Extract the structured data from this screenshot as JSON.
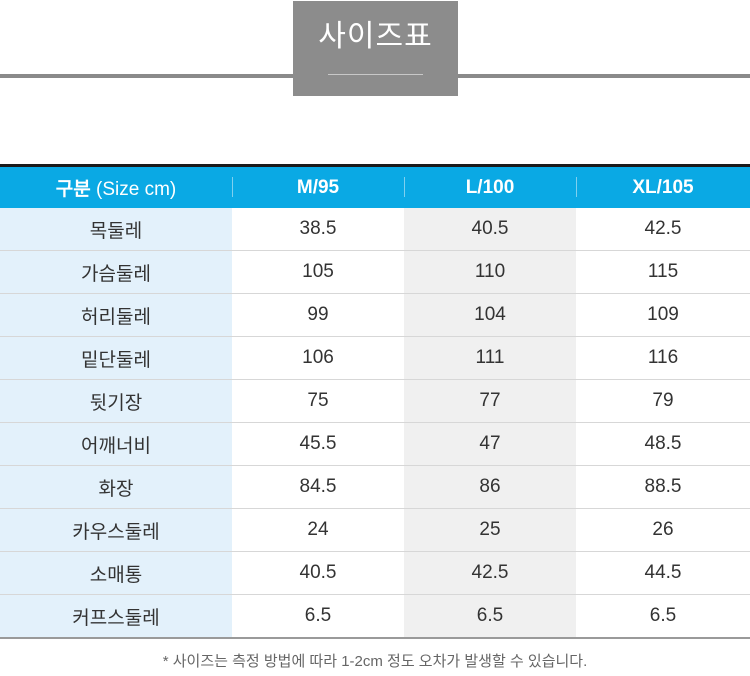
{
  "title": "사이즈표",
  "table": {
    "header": {
      "label_main": "구분",
      "label_sub": "(Size cm)",
      "columns": [
        "M/95",
        "L/100",
        "XL/105"
      ]
    },
    "rows": [
      {
        "label": "목둘레",
        "values": [
          "38.5",
          "40.5",
          "42.5"
        ]
      },
      {
        "label": "가슴둘레",
        "values": [
          "105",
          "110",
          "115"
        ]
      },
      {
        "label": "허리둘레",
        "values": [
          "99",
          "104",
          "109"
        ]
      },
      {
        "label": "밑단둘레",
        "values": [
          "106",
          "111",
          "116"
        ]
      },
      {
        "label": "뒷기장",
        "values": [
          "75",
          "77",
          "79"
        ]
      },
      {
        "label": "어깨너비",
        "values": [
          "45.5",
          "47",
          "48.5"
        ]
      },
      {
        "label": "화장",
        "values": [
          "84.5",
          "86",
          "88.5"
        ]
      },
      {
        "label": "카우스둘레",
        "values": [
          "24",
          "25",
          "26"
        ]
      },
      {
        "label": "소매통",
        "values": [
          "40.5",
          "42.5",
          "44.5"
        ]
      },
      {
        "label": "커프스둘레",
        "values": [
          "6.5",
          "6.5",
          "6.5"
        ]
      }
    ]
  },
  "footnote": "* 사이즈는 측정 방법에 따라 1-2cm 정도 오차가 발생할 수 있습니다.",
  "colors": {
    "header_bg": "#0aa9e4",
    "label_bg": "#e3f1fb",
    "title_bg": "#8c8c8c"
  }
}
